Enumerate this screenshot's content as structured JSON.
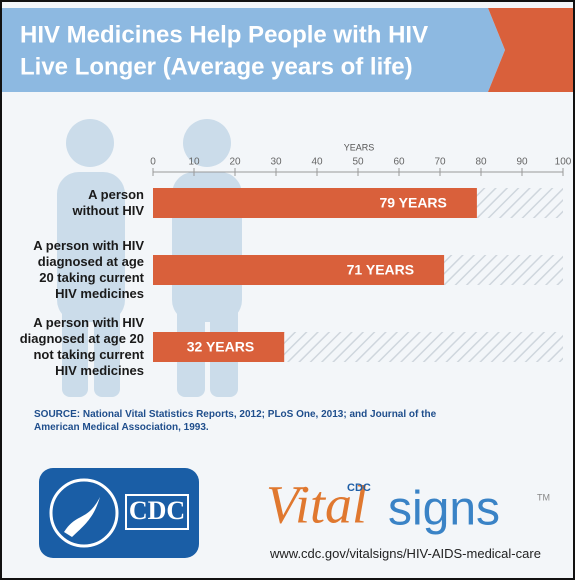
{
  "chart_data": {
    "type": "bar",
    "orientation": "horizontal",
    "title": "HIV Medicines Help People with HIV",
    "subtitle": "Live Longer (Average years of life)",
    "x_label": "YEARS",
    "categories": [
      "A person\nwithout HIV",
      "A person with HIV\ndiagnosed at age\n20 taking current\nHIV medicines",
      "A person with HIV\ndiagnosed at age 20\nnot taking current\nHIV medicines"
    ],
    "values": [
      79,
      71,
      32
    ],
    "value_labels": [
      "79 YEARS",
      "71 YEARS",
      "32 YEARS"
    ],
    "color": "#d9603b",
    "xlim": [
      0,
      100
    ],
    "xticks": [
      0,
      10,
      20,
      30,
      40,
      50,
      60,
      70,
      80,
      90,
      100
    ],
    "source": "SOURCE: National Vital Statistics Reports, 2012; PLoS One, 2013; and Journal of the American Medical Association, 1993."
  },
  "footer": {
    "logo_text": "CDC",
    "brand_cdc": "CDC",
    "brand_vital": "Vital",
    "brand_signs": "signs",
    "brand_tm": "TM",
    "url": "www.cdc.gov/vitalsigns/HIV-AIDS-medical-care"
  }
}
